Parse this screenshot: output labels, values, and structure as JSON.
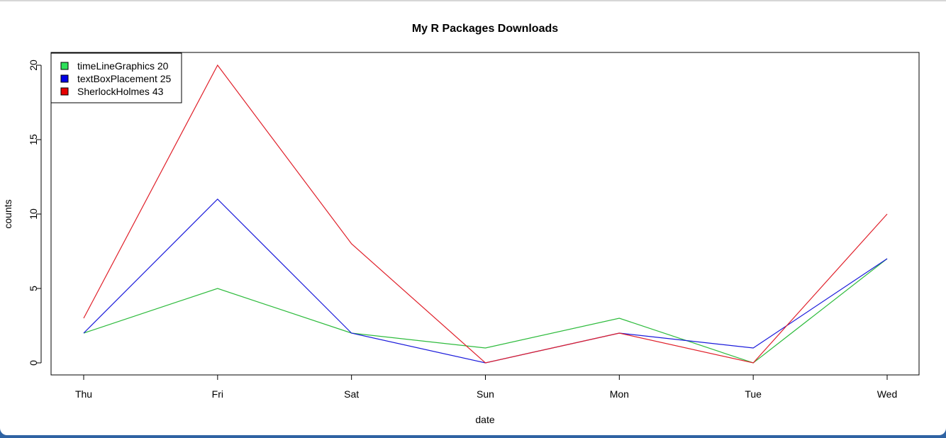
{
  "chart_data": {
    "type": "line",
    "title": "My R Packages Downloads",
    "xlabel": "date",
    "ylabel": "counts",
    "categories": [
      "Thu",
      "Fri",
      "Sat",
      "Sun",
      "Mon",
      "Tue",
      "Wed"
    ],
    "ylim": [
      0,
      20
    ],
    "yticks": [
      "0",
      "5",
      "10",
      "15",
      "20"
    ],
    "grid": false,
    "legend_position": "top-left",
    "series": [
      {
        "name": "timeLineGraphics 20",
        "color": "#2dbb3c",
        "values": [
          2,
          5,
          2,
          1,
          3,
          0,
          7
        ]
      },
      {
        "name": "textBoxPlacement 25",
        "color": "#1a1adb",
        "values": [
          2,
          11,
          2,
          0,
          2,
          1,
          7
        ]
      },
      {
        "name": "SherlockHolmes 43",
        "color": "#e0202a",
        "values": [
          3,
          20,
          8,
          0,
          2,
          0,
          10
        ]
      }
    ],
    "legend": [
      {
        "label": "timeLineGraphics 20",
        "color": "#2ee05a"
      },
      {
        "label": "textBoxPlacement 25",
        "color": "#0000e6"
      },
      {
        "label": "SherlockHolmes 43",
        "color": "#e60000"
      }
    ]
  }
}
